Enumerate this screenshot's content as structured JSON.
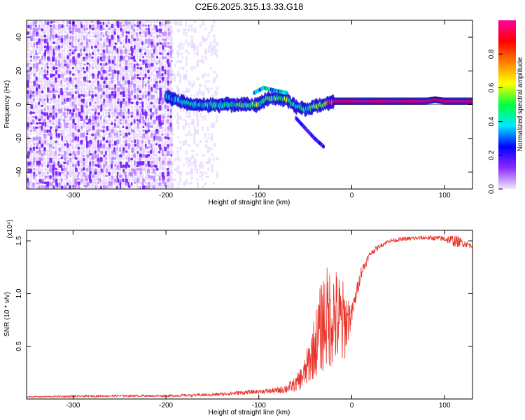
{
  "title": "C2E6.2025.315.13.33.G18",
  "chart_data": [
    {
      "type": "heatmap",
      "title": "C2E6.2025.315.13.33.G18",
      "xlabel": "Height of straight line (km)",
      "ylabel": "Frequency (Hz)",
      "xlim": [
        -350,
        130
      ],
      "ylim": [
        -50,
        50
      ],
      "x_ticks": [
        -300,
        -200,
        -100,
        0,
        100
      ],
      "y_ticks": [
        -40,
        -20,
        0,
        20,
        40
      ],
      "colorbar": {
        "label": "Normalized spectral amplitude",
        "range": [
          0,
          1
        ],
        "ticks": [
          "0.0",
          "0.2",
          "0.4",
          "0.6",
          "0.8"
        ],
        "colors": [
          "#f2e8ff",
          "#8c2bff",
          "#0000ff",
          "#00e8ff",
          "#00ff40",
          "#ffff00",
          "#ff8000",
          "#ff0000",
          "#ff00a0"
        ]
      },
      "regions": [
        {
          "name": "noise",
          "x_range": [
            -350,
            -195
          ],
          "freq_range": [
            -50,
            50
          ],
          "amplitude": 0.1
        },
        {
          "name": "sparse-noise",
          "x_range": [
            -195,
            -145
          ],
          "freq_range": [
            -50,
            50
          ],
          "amplitude": 0.03
        }
      ],
      "signal_track": {
        "x": [
          -200,
          -185,
          -170,
          -155,
          -140,
          -125,
          -110,
          -100,
          -90,
          -80,
          -70,
          -60,
          -50,
          -40,
          -30,
          -20,
          -10,
          0,
          20,
          40,
          60,
          80,
          90,
          100,
          115,
          130
        ],
        "freq": [
          5,
          2,
          0,
          0,
          0,
          0,
          0,
          0,
          4,
          4,
          3,
          -1,
          -3,
          -1,
          0,
          2,
          2,
          2,
          2,
          2,
          2,
          2,
          3,
          2,
          2,
          2
        ],
        "amplitude": [
          0.3,
          0.35,
          0.4,
          0.4,
          0.45,
          0.45,
          0.5,
          0.5,
          0.45,
          0.5,
          0.5,
          0.45,
          0.4,
          0.5,
          0.55,
          0.95,
          0.95,
          0.95,
          0.95,
          0.95,
          0.95,
          0.95,
          0.85,
          0.95,
          0.95,
          0.95
        ]
      },
      "signal_branches": [
        {
          "x": [
            -105,
            -95,
            -80,
            -70
          ],
          "freq": [
            7,
            10,
            8,
            7
          ],
          "amplitude": 0.35
        },
        {
          "x": [
            -60,
            -50,
            -40,
            -30
          ],
          "freq": [
            -8,
            -14,
            -20,
            -25
          ],
          "amplitude": 0.2
        }
      ]
    },
    {
      "type": "line",
      "xlabel": "Height of straight line (km)",
      "ylabel": "SNR (10 * v/v)",
      "scale_label": "(x10⁴)",
      "xlim": [
        -350,
        130
      ],
      "ylim": [
        0,
        1.6
      ],
      "x_ticks": [
        -300,
        -200,
        -100,
        0,
        100
      ],
      "y_ticks": [
        "0.5",
        "1.0",
        "1.5"
      ],
      "line_color": "#e8332a",
      "series": [
        {
          "name": "SNR",
          "x": [
            -350,
            -300,
            -250,
            -200,
            -150,
            -120,
            -100,
            -80,
            -70,
            -60,
            -50,
            -40,
            -30,
            -20,
            -10,
            0,
            10,
            20,
            30,
            40,
            60,
            80,
            100,
            110,
            120,
            130
          ],
          "y": [
            0.02,
            0.025,
            0.03,
            0.03,
            0.04,
            0.06,
            0.07,
            0.08,
            0.1,
            0.14,
            0.25,
            0.5,
            0.75,
            0.8,
            0.7,
            0.8,
            1.2,
            1.38,
            1.45,
            1.5,
            1.52,
            1.53,
            1.52,
            1.5,
            1.48,
            1.45
          ],
          "noise_amplitude": [
            0.005,
            0.01,
            0.01,
            0.01,
            0.015,
            0.02,
            0.02,
            0.03,
            0.05,
            0.07,
            0.15,
            0.3,
            0.5,
            0.5,
            0.45,
            0.1,
            0.06,
            0.03,
            0.02,
            0.02,
            0.02,
            0.02,
            0.03,
            0.06,
            0.04,
            0.02
          ]
        }
      ]
    }
  ]
}
